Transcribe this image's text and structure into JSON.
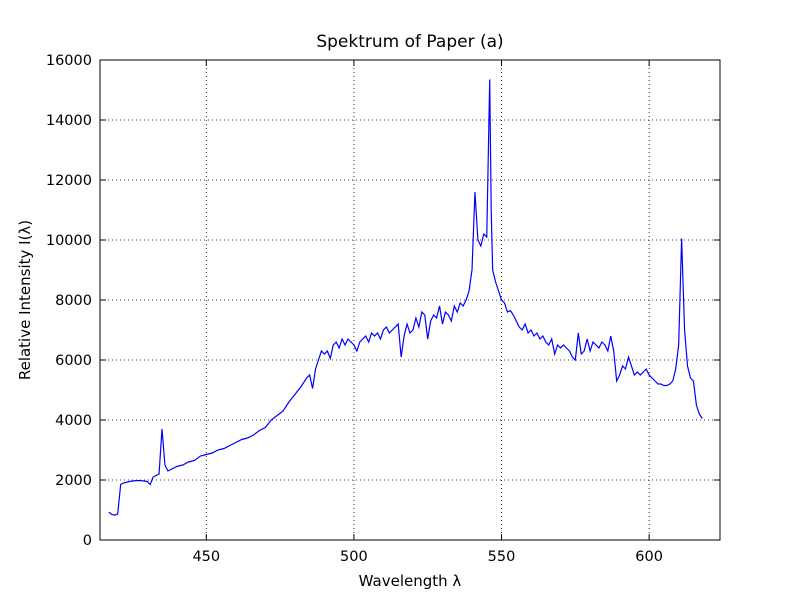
{
  "chart_data": {
    "type": "line",
    "title": "Spektrum of Paper (a)",
    "x_label": "Wavelength λ",
    "y_label": "Relative Intensity I(λ)",
    "color": "#0000ff",
    "grid": true,
    "xlim": [
      414,
      624
    ],
    "xticks": [
      450,
      500,
      550,
      600
    ],
    "ylim": [
      0,
      16000
    ],
    "yticks": [
      0,
      2000,
      4000,
      6000,
      8000,
      10000,
      12000,
      14000,
      16000
    ],
    "x": [
      417,
      418,
      419,
      420,
      421,
      422,
      424,
      426,
      428,
      430,
      431,
      432,
      433,
      434,
      435,
      436,
      437,
      438,
      440,
      442,
      444,
      446,
      448,
      450,
      452,
      454,
      456,
      458,
      460,
      462,
      464,
      466,
      468,
      470,
      472,
      474,
      476,
      478,
      480,
      482,
      484,
      485,
      486,
      487,
      488,
      489,
      490,
      491,
      492,
      493,
      494,
      495,
      496,
      497,
      498,
      499,
      500,
      501,
      502,
      503,
      504,
      505,
      506,
      507,
      508,
      509,
      510,
      511,
      512,
      513,
      514,
      515,
      516,
      517,
      518,
      519,
      520,
      521,
      522,
      523,
      524,
      525,
      526,
      527,
      528,
      529,
      530,
      531,
      532,
      533,
      534,
      535,
      536,
      537,
      538,
      539,
      540,
      541,
      542,
      543,
      544,
      545,
      546,
      546.5,
      547,
      548,
      549,
      550,
      551,
      552,
      553,
      554,
      555,
      556,
      557,
      558,
      559,
      560,
      561,
      562,
      563,
      564,
      565,
      566,
      567,
      568,
      569,
      570,
      571,
      572,
      573,
      574,
      575,
      576,
      577,
      578,
      579,
      580,
      581,
      582,
      583,
      584,
      585,
      586,
      587,
      588,
      589,
      590,
      591,
      592,
      593,
      594,
      595,
      596,
      597,
      598,
      599,
      600,
      601,
      602,
      603,
      604,
      605,
      606,
      607,
      608,
      609,
      610,
      611,
      612,
      613,
      614,
      615,
      616,
      617,
      618
    ],
    "values": [
      930,
      850,
      830,
      870,
      1850,
      1900,
      1950,
      1980,
      1980,
      1950,
      1850,
      2100,
      2150,
      2200,
      3700,
      2500,
      2300,
      2350,
      2450,
      2500,
      2600,
      2650,
      2800,
      2850,
      2900,
      3000,
      3050,
      3150,
      3250,
      3350,
      3400,
      3500,
      3650,
      3750,
      4000,
      4150,
      4300,
      4600,
      4850,
      5100,
      5400,
      5500,
      5050,
      5700,
      6000,
      6300,
      6200,
      6300,
      6050,
      6500,
      6600,
      6400,
      6700,
      6500,
      6700,
      6600,
      6500,
      6300,
      6600,
      6700,
      6800,
      6600,
      6900,
      6800,
      6900,
      6700,
      7000,
      7100,
      6900,
      7000,
      7100,
      7200,
      6100,
      6800,
      7200,
      6900,
      7000,
      7400,
      7100,
      7600,
      7500,
      6700,
      7300,
      7500,
      7400,
      7800,
      7200,
      7600,
      7500,
      7300,
      7800,
      7600,
      7900,
      7800,
      8000,
      8300,
      9000,
      11600,
      10000,
      9800,
      10200,
      10100,
      15350,
      11000,
      9000,
      8600,
      8300,
      8000,
      7900,
      7600,
      7650,
      7500,
      7300,
      7100,
      7000,
      7200,
      6900,
      7000,
      6800,
      6900,
      6700,
      6800,
      6600,
      6500,
      6700,
      6200,
      6500,
      6400,
      6500,
      6400,
      6300,
      6100,
      6000,
      6900,
      6200,
      6300,
      6700,
      6300,
      6600,
      6500,
      6400,
      6600,
      6500,
      6300,
      6800,
      6300,
      5300,
      5500,
      5800,
      5700,
      6100,
      5800,
      5500,
      5600,
      5500,
      5600,
      5700,
      5500,
      5400,
      5300,
      5200,
      5200,
      5150,
      5150,
      5200,
      5300,
      5700,
      6500,
      10050,
      7000,
      5800,
      5400,
      5300,
      4500,
      4200,
      4050
    ]
  }
}
